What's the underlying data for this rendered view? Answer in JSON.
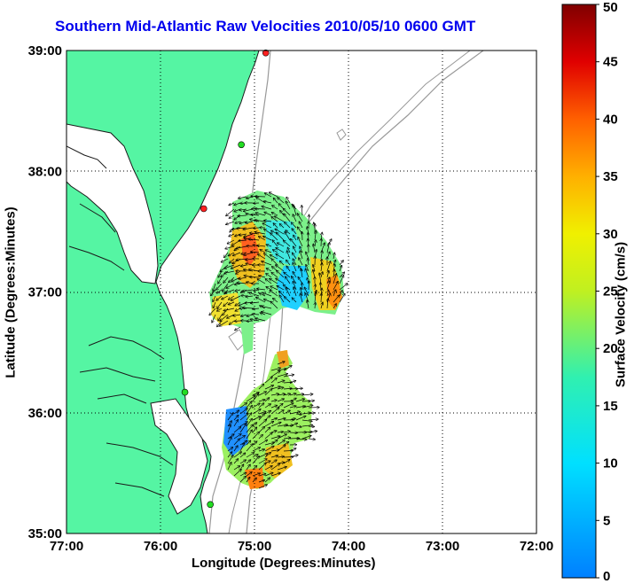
{
  "title": "Southern Mid-Atlantic Raw Velocities 2010/05/10 0600 GMT",
  "xlabel": "Longitude (Degrees:Minutes)",
  "ylabel": "Latitude (Degrees:Minutes)",
  "colorbar_label": "Surface Velocity (cm/s)",
  "colors": {
    "land": "#55f5a3",
    "coast": "#1a1a1a",
    "bathy": "#999999",
    "title": "#0000ee"
  },
  "chart_data": {
    "type": "map",
    "x_ticks": [
      "77:00",
      "76:00",
      "75:00",
      "74:00",
      "73:00",
      "72:00"
    ],
    "y_ticks": [
      "39:00",
      "38:00",
      "37:00",
      "36:00",
      "35:00"
    ],
    "xlim": [
      -77,
      -72
    ],
    "ylim": [
      35,
      39
    ],
    "colorbar_ticks": [
      "50",
      "45",
      "40",
      "35",
      "30",
      "25",
      "20",
      "15",
      "10",
      "5",
      "0"
    ],
    "colorbar_range": [
      0,
      50
    ],
    "grid": true,
    "stations": [
      {
        "lon": -74.88,
        "lat": 38.98,
        "color": "#ff2020"
      },
      {
        "lon": -75.14,
        "lat": 38.22,
        "color": "#22dd22"
      },
      {
        "lon": -75.54,
        "lat": 37.69,
        "color": "#ff2020"
      },
      {
        "lon": -75.74,
        "lat": 36.17,
        "color": "#22dd22"
      },
      {
        "lon": -75.47,
        "lat": 35.24,
        "color": "#22dd22"
      }
    ]
  }
}
